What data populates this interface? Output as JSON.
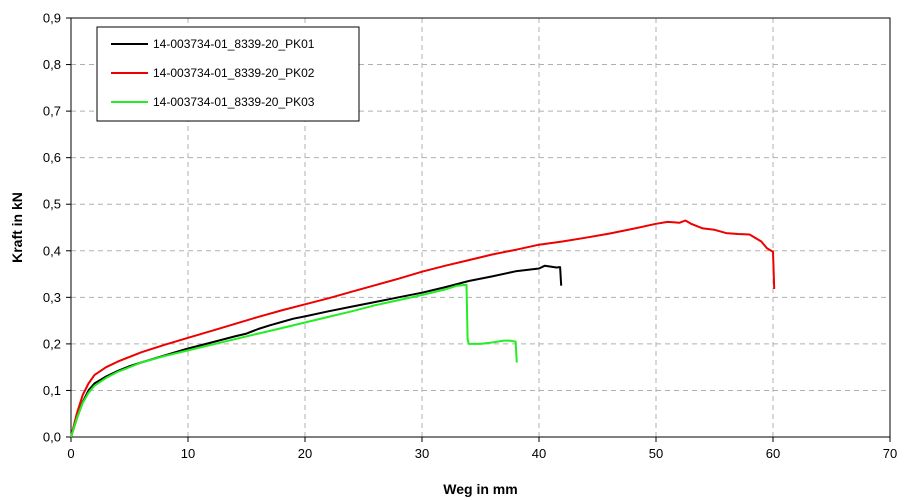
{
  "chart_data": {
    "type": "line",
    "xlabel": "Weg in mm",
    "ylabel": "Kraft in kN",
    "xlim": [
      0,
      70
    ],
    "ylim": [
      0,
      0.9
    ],
    "x_ticks": [
      "0",
      "10",
      "20",
      "30",
      "40",
      "50",
      "60",
      "70"
    ],
    "y_ticks": [
      "0,0",
      "0,1",
      "0,2",
      "0,3",
      "0,4",
      "0,5",
      "0,6",
      "0,7",
      "0,8",
      "0,9"
    ],
    "grid": true,
    "legend_position": "top-left",
    "series": [
      {
        "name": "14-003734-01_8339-20_PK01",
        "color": "#000000",
        "points": [
          [
            0,
            0
          ],
          [
            0.5,
            0.04
          ],
          [
            1,
            0.075
          ],
          [
            1.5,
            0.1
          ],
          [
            2,
            0.115
          ],
          [
            3,
            0.13
          ],
          [
            4,
            0.142
          ],
          [
            5,
            0.152
          ],
          [
            6,
            0.16
          ],
          [
            8,
            0.175
          ],
          [
            10,
            0.19
          ],
          [
            12,
            0.203
          ],
          [
            14,
            0.216
          ],
          [
            15,
            0.222
          ],
          [
            16,
            0.232
          ],
          [
            17,
            0.24
          ],
          [
            18,
            0.247
          ],
          [
            19,
            0.254
          ],
          [
            20,
            0.259
          ],
          [
            22,
            0.27
          ],
          [
            24,
            0.28
          ],
          [
            26,
            0.29
          ],
          [
            28,
            0.3
          ],
          [
            30,
            0.31
          ],
          [
            32,
            0.322
          ],
          [
            34,
            0.335
          ],
          [
            36,
            0.345
          ],
          [
            38,
            0.356
          ],
          [
            40,
            0.362
          ],
          [
            40.5,
            0.368
          ],
          [
            41,
            0.366
          ],
          [
            41.5,
            0.364
          ],
          [
            41.8,
            0.365
          ],
          [
            41.9,
            0.325
          ]
        ]
      },
      {
        "name": "14-003734-01_8339-20_PK02",
        "color": "#ee0000",
        "points": [
          [
            0,
            0
          ],
          [
            0.5,
            0.05
          ],
          [
            1,
            0.09
          ],
          [
            1.5,
            0.115
          ],
          [
            2,
            0.133
          ],
          [
            3,
            0.15
          ],
          [
            4,
            0.162
          ],
          [
            5,
            0.172
          ],
          [
            6,
            0.182
          ],
          [
            8,
            0.198
          ],
          [
            10,
            0.213
          ],
          [
            12,
            0.228
          ],
          [
            14,
            0.243
          ],
          [
            16,
            0.258
          ],
          [
            18,
            0.272
          ],
          [
            20,
            0.285
          ],
          [
            22,
            0.298
          ],
          [
            24,
            0.312
          ],
          [
            26,
            0.326
          ],
          [
            28,
            0.34
          ],
          [
            30,
            0.355
          ],
          [
            32,
            0.368
          ],
          [
            34,
            0.38
          ],
          [
            36,
            0.392
          ],
          [
            38,
            0.402
          ],
          [
            40,
            0.413
          ],
          [
            42,
            0.42
          ],
          [
            44,
            0.428
          ],
          [
            46,
            0.437
          ],
          [
            48,
            0.447
          ],
          [
            50,
            0.458
          ],
          [
            51,
            0.462
          ],
          [
            52,
            0.46
          ],
          [
            52.5,
            0.465
          ],
          [
            53,
            0.458
          ],
          [
            54,
            0.448
          ],
          [
            55,
            0.445
          ],
          [
            56,
            0.438
          ],
          [
            57,
            0.436
          ],
          [
            58,
            0.435
          ],
          [
            59,
            0.42
          ],
          [
            59.5,
            0.405
          ],
          [
            60,
            0.398
          ],
          [
            60.1,
            0.318
          ]
        ]
      },
      {
        "name": "14-003734-01_8339-20_PK03",
        "color": "#22ee22",
        "points": [
          [
            0,
            0
          ],
          [
            0.5,
            0.04
          ],
          [
            1,
            0.073
          ],
          [
            1.5,
            0.095
          ],
          [
            2,
            0.11
          ],
          [
            3,
            0.127
          ],
          [
            4,
            0.14
          ],
          [
            5,
            0.15
          ],
          [
            6,
            0.16
          ],
          [
            8,
            0.174
          ],
          [
            10,
            0.186
          ],
          [
            12,
            0.198
          ],
          [
            14,
            0.21
          ],
          [
            16,
            0.222
          ],
          [
            18,
            0.234
          ],
          [
            20,
            0.246
          ],
          [
            22,
            0.258
          ],
          [
            24,
            0.27
          ],
          [
            26,
            0.283
          ],
          [
            28,
            0.294
          ],
          [
            30,
            0.305
          ],
          [
            32,
            0.317
          ],
          [
            33,
            0.325
          ],
          [
            33.8,
            0.327
          ],
          [
            33.9,
            0.21
          ],
          [
            34,
            0.2
          ],
          [
            35,
            0.2
          ],
          [
            36,
            0.203
          ],
          [
            37,
            0.207
          ],
          [
            37.5,
            0.207
          ],
          [
            38,
            0.205
          ],
          [
            38.1,
            0.16
          ]
        ]
      }
    ]
  }
}
